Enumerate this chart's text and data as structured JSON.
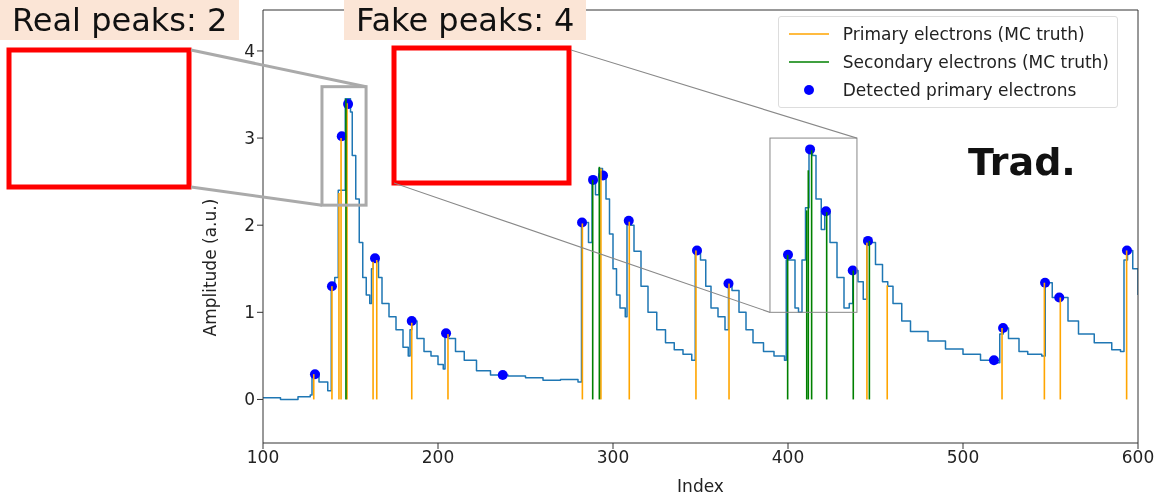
{
  "chart_data": {
    "type": "step",
    "xlabel": "Index",
    "ylabel": "Amplitude (a.u.)",
    "xlim": [
      100,
      600
    ],
    "ylim": [
      -0.5,
      4.47
    ],
    "xticks": [
      100,
      200,
      300,
      400,
      500,
      600
    ],
    "yticks": [
      0,
      1,
      2,
      3,
      4
    ],
    "grid": false,
    "legend": "top right",
    "annotations": [
      "Real peaks: 2",
      "Fake peaks: 4",
      "Trad."
    ],
    "series": [
      {
        "color": "#1f77b4",
        "x": [
          100,
          110,
          120,
          127,
          128,
          132,
          137,
          139,
          141,
          143,
          147,
          150,
          151,
          153,
          155,
          157,
          159,
          161,
          162,
          163,
          166,
          168,
          172,
          176,
          180,
          183,
          184,
          185,
          188,
          192,
          196,
          200,
          203,
          204,
          206,
          210,
          215,
          222,
          230,
          240,
          250,
          260,
          270,
          280,
          282,
          284,
          286,
          288,
          290,
          292,
          294,
          296,
          298,
          300,
          302,
          304,
          307,
          308,
          310,
          312,
          316,
          320,
          325,
          330,
          335,
          340,
          345,
          347,
          350,
          353,
          356,
          360,
          364,
          366,
          368,
          372,
          376,
          380,
          386,
          392,
          398,
          399,
          401,
          404,
          406,
          408,
          410,
          412,
          414,
          416,
          419,
          421,
          424,
          428,
          432,
          435,
          437,
          440,
          443,
          445,
          447,
          450,
          454,
          457,
          460,
          465,
          470,
          480,
          490,
          500,
          510,
          517,
          521,
          523,
          526,
          532,
          537,
          545,
          547,
          551,
          556,
          560,
          566,
          575,
          585,
          590,
          592,
          594,
          597,
          600
        ],
        "values": [
          0.02,
          0,
          0.03,
          0.05,
          0.3,
          0.2,
          0.1,
          1.3,
          1.4,
          2.4,
          3.45,
          3.3,
          2.8,
          2.3,
          1.8,
          1.4,
          1.2,
          1.1,
          1.5,
          1.6,
          1.4,
          1.1,
          0.95,
          0.8,
          0.6,
          0.5,
          0.8,
          0.9,
          0.7,
          0.55,
          0.5,
          0.4,
          0.35,
          0.75,
          0.7,
          0.55,
          0.45,
          0.33,
          0.28,
          0.27,
          0.25,
          0.22,
          0.23,
          0.2,
          2.0,
          2.03,
          1.8,
          2.5,
          2.35,
          2.65,
          2.6,
          2.3,
          1.9,
          1.5,
          1.2,
          1.05,
          0.95,
          2.05,
          2.0,
          1.7,
          1.3,
          1.0,
          0.8,
          0.65,
          0.57,
          0.52,
          0.45,
          1.7,
          1.6,
          1.3,
          1.05,
          0.95,
          0.8,
          1.33,
          1.25,
          1.0,
          0.8,
          0.65,
          0.55,
          0.5,
          0.45,
          1.6,
          1.6,
          1.05,
          1.0,
          1.6,
          2.2,
          2.85,
          2.8,
          2.3,
          1.95,
          2.15,
          1.8,
          1.4,
          1.05,
          1.1,
          1.48,
          1.35,
          1.15,
          1.8,
          1.8,
          1.55,
          1.35,
          1.3,
          1.1,
          0.9,
          0.78,
          0.67,
          0.58,
          0.52,
          0.45,
          0.42,
          0.75,
          0.82,
          0.7,
          0.55,
          0.52,
          0.5,
          1.34,
          1.17,
          1.17,
          0.9,
          0.75,
          0.65,
          0.57,
          0.55,
          1.6,
          1.71,
          1.5,
          1.2
        ]
      },
      {
        "type": "bar",
        "name": "Primary electrons (MC truth)",
        "color": "#ffa500",
        "x": [
          129,
          139.4,
          143.4,
          144.6,
          148,
          162.9,
          165,
          185,
          205.7,
          282.5,
          293.1,
          309.3,
          347.4,
          366.3,
          445.1,
          456.7,
          522.3,
          546.5,
          555.6,
          593.5
        ],
        "values": [
          0.29,
          1.3,
          2.37,
          3.0,
          3.4,
          1.58,
          1.6,
          0.88,
          0.75,
          2.02,
          2.65,
          2.04,
          1.71,
          1.33,
          1.8,
          1.31,
          0.82,
          1.34,
          1.17,
          1.71
        ]
      },
      {
        "type": "bar",
        "name": "Secondary electrons (MC truth)",
        "color": "#008000",
        "x": [
          147.4,
          288.4,
          292.2,
          399.8,
          410.7,
          411.6,
          413.5,
          422.1,
          437.3,
          446.5
        ],
        "values": [
          3.45,
          2.52,
          2.67,
          1.66,
          2.17,
          2.63,
          2.86,
          2.15,
          1.48,
          1.82
        ]
      },
      {
        "type": "scatter",
        "name": "Detected primary electrons",
        "color": "#0000ff",
        "marker": "circle",
        "x": [
          129.7,
          139.4,
          145,
          148.6,
          164,
          185,
          204.6,
          237,
          282.3,
          288.6,
          294.3,
          309,
          348,
          366,
          400,
          412.6,
          421.7,
          437,
          445.7,
          517.7,
          522.9,
          546.9,
          555,
          593.7
        ],
        "values": [
          0.29,
          1.3,
          3.02,
          3.39,
          1.62,
          0.9,
          0.76,
          0.28,
          2.03,
          2.52,
          2.57,
          2.05,
          1.71,
          1.33,
          1.66,
          2.87,
          2.16,
          1.48,
          1.82,
          0.45,
          0.82,
          1.34,
          1.17,
          1.71
        ]
      }
    ]
  }
}
